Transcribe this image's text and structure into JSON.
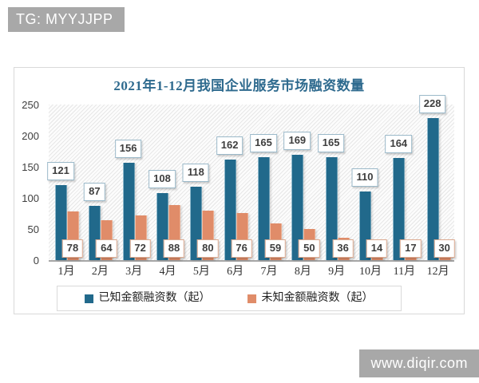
{
  "badge": {
    "text": "TG: MYYJJPP"
  },
  "watermark": {
    "text": "www.diqir.com"
  },
  "chart_data": {
    "type": "bar",
    "title": "2021年1-12月我国企业服务市场融资数量",
    "categories": [
      "1月",
      "2月",
      "3月",
      "4月",
      "5月",
      "6月",
      "7月",
      "8月",
      "9月",
      "10月",
      "11月",
      "12月"
    ],
    "series": [
      {
        "name": "已知金额融资数（起）",
        "color": "#21698b",
        "values": [
          121,
          87,
          156,
          108,
          118,
          162,
          165,
          169,
          165,
          110,
          164,
          228
        ]
      },
      {
        "name": "未知金额融资数（起）",
        "color": "#e08c69",
        "values": [
          78,
          64,
          72,
          88,
          80,
          76,
          59,
          50,
          36,
          14,
          17,
          30
        ]
      }
    ],
    "ylim": [
      0,
      250
    ],
    "yticks": [
      0,
      50,
      100,
      150,
      200,
      250
    ],
    "xlabel": "",
    "ylabel": "",
    "grid": false,
    "plot_background": "light-diagonal-hatch",
    "legend_position": "bottom",
    "data_labels": true
  }
}
